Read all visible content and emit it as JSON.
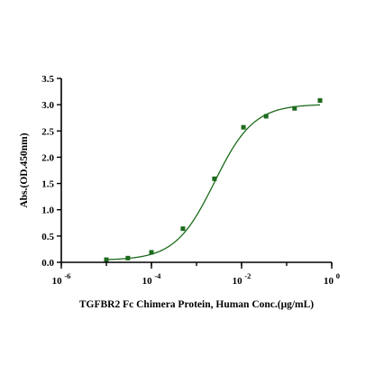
{
  "chart_data": {
    "type": "scatter",
    "xlabel": "TGFBR2 Fc Chimera Protein, Human Conc.(μg/mL)",
    "ylabel": "Abs.(OD.450nm)",
    "x_scale": "log",
    "xlim": [
      1e-06,
      1
    ],
    "ylim": [
      0,
      3.5
    ],
    "x_ticks": [
      {
        "value": 1e-06,
        "base": "10",
        "exp": "-6"
      },
      {
        "value": 0.0001,
        "base": "10",
        "exp": "-4"
      },
      {
        "value": 0.01,
        "base": "10",
        "exp": "-2"
      },
      {
        "value": 1,
        "base": "10",
        "exp": "0"
      }
    ],
    "y_ticks": [
      "0.0",
      "0.5",
      "1.0",
      "1.5",
      "2.0",
      "2.5",
      "3.0",
      "3.5"
    ],
    "grid": false,
    "color": "#1b6b1b",
    "series": [
      {
        "x": [
          1e-05,
          3e-05,
          0.0001,
          0.0005,
          0.0025,
          0.011,
          0.035,
          0.15,
          0.55
        ],
        "y": [
          0.05,
          0.08,
          0.19,
          0.64,
          1.59,
          2.57,
          2.78,
          2.93,
          3.08
        ],
        "fit": {
          "bottom": 0.04,
          "top": 3.01,
          "ec50": 0.0025,
          "hill": 1.0
        }
      }
    ]
  }
}
